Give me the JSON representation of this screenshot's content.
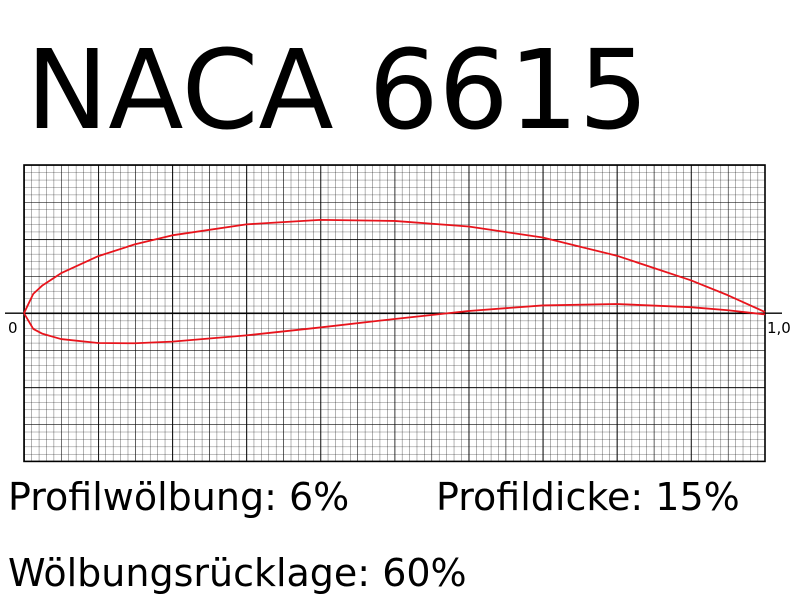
{
  "chart_data": {
    "type": "line",
    "title": "NACA 6615",
    "annotations": [
      "Profilwölbung: 6%",
      "Profildicke: 15%",
      "Wölbungsrücklage: 60%"
    ],
    "x": [
      0,
      0.0125,
      0.025,
      0.05,
      0.1,
      0.15,
      0.2,
      0.3,
      0.4,
      0.5,
      0.6,
      0.7,
      0.8,
      0.9,
      0.95,
      1
    ],
    "series": [
      {
        "color": "#e8141c",
        "values": [
          0,
          0.0261,
          0.0376,
          0.054,
          0.0769,
          0.0931,
          0.1051,
          0.1199,
          0.1259,
          0.1245,
          0.117,
          0.1021,
          0.0776,
          0.0444,
          0.0242,
          0.0016
        ]
      },
      {
        "color": "#e8141c",
        "values": [
          0,
          -0.0212,
          -0.0278,
          -0.0349,
          -0.0402,
          -0.0406,
          -0.0384,
          -0.0299,
          -0.0192,
          -0.0078,
          0.003,
          0.0105,
          0.0124,
          0.0081,
          0.004,
          -0.0016
        ]
      }
    ],
    "xlim": [
      0,
      1
    ],
    "ylim": [
      -0.2,
      0.2
    ],
    "xticks": [
      0,
      {
        "value": 1,
        "label": "1,0"
      }
    ],
    "grid": true
  }
}
